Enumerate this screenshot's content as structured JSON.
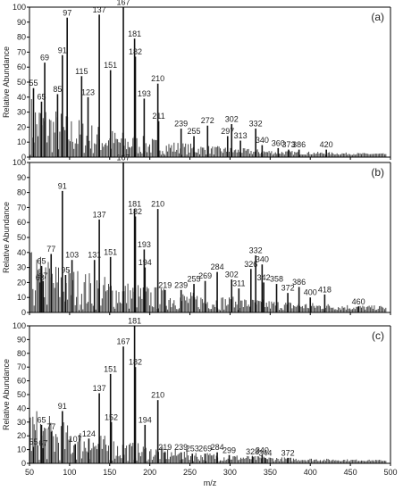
{
  "figure": {
    "xlabel": "m/z",
    "ylabel": "Relative Abundance",
    "x_ticks": [
      50,
      100,
      150,
      200,
      250,
      300,
      350,
      400,
      450,
      500
    ],
    "y_ticks": [
      0,
      10,
      20,
      30,
      40,
      50,
      60,
      70,
      80,
      90,
      100
    ]
  },
  "chart_data": [
    {
      "type": "bar",
      "panel": "(a)",
      "xlabel": "",
      "ylabel": "Relative Abundance",
      "xlim": [
        50,
        500
      ],
      "ylim": [
        0,
        100
      ],
      "peaks": [
        {
          "mz": 55,
          "abundance": 46,
          "label": "55"
        },
        {
          "mz": 65,
          "abundance": 37,
          "label": "65"
        },
        {
          "mz": 69,
          "abundance": 63,
          "label": "69"
        },
        {
          "mz": 85,
          "abundance": 42,
          "label": "85"
        },
        {
          "mz": 91,
          "abundance": 68,
          "label": "91"
        },
        {
          "mz": 97,
          "abundance": 93,
          "label": "97"
        },
        {
          "mz": 115,
          "abundance": 54,
          "label": "115"
        },
        {
          "mz": 123,
          "abundance": 40,
          "label": "123"
        },
        {
          "mz": 137,
          "abundance": 95,
          "label": "137"
        },
        {
          "mz": 151,
          "abundance": 58,
          "label": "151"
        },
        {
          "mz": 167,
          "abundance": 100,
          "label": "167"
        },
        {
          "mz": 181,
          "abundance": 79,
          "label": "181"
        },
        {
          "mz": 182,
          "abundance": 67,
          "label": "182"
        },
        {
          "mz": 193,
          "abundance": 39,
          "label": "193"
        },
        {
          "mz": 210,
          "abundance": 49,
          "label": "210"
        },
        {
          "mz": 211,
          "abundance": 24,
          "label": "211"
        },
        {
          "mz": 239,
          "abundance": 19,
          "label": "239"
        },
        {
          "mz": 255,
          "abundance": 14,
          "label": "255"
        },
        {
          "mz": 272,
          "abundance": 21,
          "label": "272"
        },
        {
          "mz": 297,
          "abundance": 14,
          "label": "297"
        },
        {
          "mz": 302,
          "abundance": 22,
          "label": "302"
        },
        {
          "mz": 313,
          "abundance": 11,
          "label": "313"
        },
        {
          "mz": 332,
          "abundance": 19,
          "label": "332"
        },
        {
          "mz": 340,
          "abundance": 8,
          "label": "340"
        },
        {
          "mz": 360,
          "abundance": 6,
          "label": "360"
        },
        {
          "mz": 373,
          "abundance": 5,
          "label": "373"
        },
        {
          "mz": 386,
          "abundance": 5,
          "label": "386"
        },
        {
          "mz": 420,
          "abundance": 5,
          "label": "420"
        }
      ]
    },
    {
      "type": "bar",
      "panel": "(b)",
      "xlabel": "",
      "ylabel": "Relative Abundance",
      "xlim": [
        50,
        500
      ],
      "ylim": [
        0,
        100
      ],
      "peaks": [
        {
          "mz": 63,
          "abundance": 20,
          "label": "63"
        },
        {
          "mz": 65,
          "abundance": 31,
          "label": "65"
        },
        {
          "mz": 67,
          "abundance": 21,
          "label": "67"
        },
        {
          "mz": 77,
          "abundance": 39,
          "label": "77"
        },
        {
          "mz": 91,
          "abundance": 81,
          "label": "91"
        },
        {
          "mz": 95,
          "abundance": 25,
          "label": "95"
        },
        {
          "mz": 103,
          "abundance": 35,
          "label": "103"
        },
        {
          "mz": 131,
          "abundance": 35,
          "label": "131"
        },
        {
          "mz": 137,
          "abundance": 62,
          "label": "137"
        },
        {
          "mz": 151,
          "abundance": 37,
          "label": "151"
        },
        {
          "mz": 167,
          "abundance": 100,
          "label": "167"
        },
        {
          "mz": 181,
          "abundance": 69,
          "label": "181"
        },
        {
          "mz": 182,
          "abundance": 64,
          "label": "182"
        },
        {
          "mz": 193,
          "abundance": 42,
          "label": "193"
        },
        {
          "mz": 194,
          "abundance": 30,
          "label": "194"
        },
        {
          "mz": 210,
          "abundance": 69,
          "label": "210"
        },
        {
          "mz": 219,
          "abundance": 15,
          "label": "219"
        },
        {
          "mz": 239,
          "abundance": 15,
          "label": "239"
        },
        {
          "mz": 255,
          "abundance": 19,
          "label": "255"
        },
        {
          "mz": 269,
          "abundance": 21,
          "label": "269"
        },
        {
          "mz": 284,
          "abundance": 27,
          "label": "284"
        },
        {
          "mz": 302,
          "abundance": 22,
          "label": "302"
        },
        {
          "mz": 311,
          "abundance": 16,
          "label": "311"
        },
        {
          "mz": 326,
          "abundance": 29,
          "label": "326"
        },
        {
          "mz": 332,
          "abundance": 38,
          "label": "332"
        },
        {
          "mz": 340,
          "abundance": 32,
          "label": "340"
        },
        {
          "mz": 342,
          "abundance": 20,
          "label": "342"
        },
        {
          "mz": 358,
          "abundance": 19,
          "label": "358"
        },
        {
          "mz": 372,
          "abundance": 13,
          "label": "372"
        },
        {
          "mz": 386,
          "abundance": 17,
          "label": "386"
        },
        {
          "mz": 400,
          "abundance": 10,
          "label": "400"
        },
        {
          "mz": 418,
          "abundance": 12,
          "label": "418"
        },
        {
          "mz": 460,
          "abundance": 4,
          "label": "460"
        }
      ]
    },
    {
      "type": "bar",
      "panel": "(c)",
      "xlabel": "m/z",
      "ylabel": "Relative Abundance",
      "xlim": [
        50,
        500
      ],
      "ylim": [
        0,
        100
      ],
      "peaks": [
        {
          "mz": 55,
          "abundance": 12,
          "label": "55"
        },
        {
          "mz": 65,
          "abundance": 28,
          "label": "65"
        },
        {
          "mz": 67,
          "abundance": 11,
          "label": "67"
        },
        {
          "mz": 77,
          "abundance": 23,
          "label": "77"
        },
        {
          "mz": 91,
          "abundance": 38,
          "label": "91"
        },
        {
          "mz": 107,
          "abundance": 14,
          "label": "107"
        },
        {
          "mz": 124,
          "abundance": 18,
          "label": "124"
        },
        {
          "mz": 137,
          "abundance": 51,
          "label": "137"
        },
        {
          "mz": 151,
          "abundance": 65,
          "label": "151"
        },
        {
          "mz": 152,
          "abundance": 30,
          "label": "152"
        },
        {
          "mz": 167,
          "abundance": 85,
          "label": "167"
        },
        {
          "mz": 181,
          "abundance": 100,
          "label": "181"
        },
        {
          "mz": 182,
          "abundance": 70,
          "label": "182"
        },
        {
          "mz": 194,
          "abundance": 28,
          "label": "194"
        },
        {
          "mz": 210,
          "abundance": 46,
          "label": "210"
        },
        {
          "mz": 219,
          "abundance": 8,
          "label": "219"
        },
        {
          "mz": 239,
          "abundance": 8,
          "label": "239"
        },
        {
          "mz": 253,
          "abundance": 7,
          "label": "253"
        },
        {
          "mz": 269,
          "abundance": 7,
          "label": "269"
        },
        {
          "mz": 284,
          "abundance": 8,
          "label": "284"
        },
        {
          "mz": 299,
          "abundance": 6,
          "label": "299"
        },
        {
          "mz": 328,
          "abundance": 5,
          "label": "328"
        },
        {
          "mz": 340,
          "abundance": 6,
          "label": "340"
        },
        {
          "mz": 344,
          "abundance": 4,
          "label": "344"
        },
        {
          "mz": 372,
          "abundance": 4,
          "label": "372"
        }
      ]
    }
  ]
}
